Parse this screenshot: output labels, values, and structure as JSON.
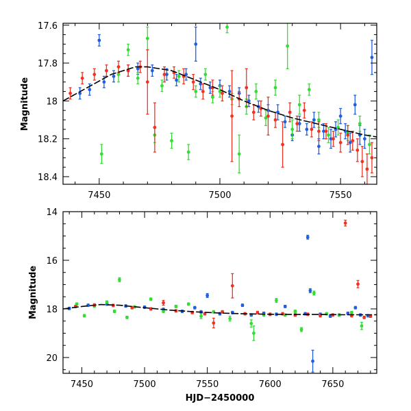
{
  "colors": {
    "blue": "#1f5fe0",
    "green": "#33dd33",
    "red": "#ee3322",
    "model": "#000000"
  },
  "chart_data": [
    {
      "type": "scatter",
      "title": "",
      "xlabel": "",
      "ylabel": "Magnitude",
      "xlim": [
        7435,
        7565
      ],
      "ylim": [
        18.44,
        17.59
      ],
      "y_inverted": true,
      "grid": false,
      "xticks": [
        7450,
        7500,
        7550
      ],
      "yticks": [
        17.6,
        17.8,
        18.0,
        18.2,
        18.4
      ],
      "xtick_labels": [
        "7450",
        "7500",
        "7550"
      ],
      "ytick_labels": [
        "17.6",
        "17.8",
        "18",
        "18.2",
        "18.4"
      ],
      "model_curve": {
        "x": [
          7435,
          7445,
          7455,
          7465,
          7470,
          7480,
          7490,
          7500,
          7510,
          7520,
          7530,
          7540,
          7550,
          7560,
          7565
        ],
        "y": [
          18.0,
          17.93,
          17.86,
          17.82,
          17.82,
          17.84,
          17.89,
          17.94,
          18.0,
          18.05,
          18.09,
          18.12,
          18.15,
          18.18,
          18.19
        ]
      },
      "series": [
        {
          "color": "blue",
          "points": [
            [
              7442,
              17.96,
              0.03
            ],
            [
              7446,
              17.94,
              0.03
            ],
            [
              7450,
              17.68,
              0.03
            ],
            [
              7452,
              17.9,
              0.03
            ],
            [
              7456,
              17.87,
              0.03
            ],
            [
              7462,
              17.84,
              0.03
            ],
            [
              7466,
              17.83,
              0.03
            ],
            [
              7472,
              17.84,
              0.03
            ],
            [
              7478,
              17.86,
              0.03
            ],
            [
              7482,
              17.89,
              0.03
            ],
            [
              7486,
              17.86,
              0.03
            ],
            [
              7490,
              17.7,
              0.09
            ],
            [
              7492,
              17.91,
              0.03
            ],
            [
              7496,
              17.93,
              0.03
            ],
            [
              7500,
              17.92,
              0.03
            ],
            [
              7504,
              17.95,
              0.03
            ],
            [
              7508,
              17.96,
              0.03
            ],
            [
              7512,
              18.0,
              0.03
            ],
            [
              7516,
              18.03,
              0.03
            ],
            [
              7520,
              18.05,
              0.03
            ],
            [
              7524,
              18.06,
              0.04
            ],
            [
              7527,
              18.11,
              0.03
            ],
            [
              7530,
              18.18,
              0.03
            ],
            [
              7533,
              18.12,
              0.04
            ],
            [
              7536,
              18.15,
              0.03
            ],
            [
              7539,
              18.1,
              0.04
            ],
            [
              7541,
              18.24,
              0.04
            ],
            [
              7543,
              18.16,
              0.04
            ],
            [
              7546,
              18.2,
              0.05
            ],
            [
              7548,
              18.15,
              0.04
            ],
            [
              7550,
              18.08,
              0.04
            ],
            [
              7552,
              18.16,
              0.04
            ],
            [
              7554,
              18.22,
              0.05
            ],
            [
              7556,
              18.02,
              0.05
            ],
            [
              7558,
              18.18,
              0.05
            ],
            [
              7560,
              18.2,
              0.05
            ],
            [
              7563,
              17.77,
              0.09
            ]
          ]
        },
        {
          "color": "green",
          "points": [
            [
              7451,
              18.28,
              0.05
            ],
            [
              7458,
              17.86,
              0.04
            ],
            [
              7462,
              17.73,
              0.03
            ],
            [
              7466,
              17.88,
              0.03
            ],
            [
              7470,
              17.67,
              0.06
            ],
            [
              7473,
              18.18,
              0.04
            ],
            [
              7476,
              17.92,
              0.03
            ],
            [
              7480,
              18.21,
              0.04
            ],
            [
              7483,
              17.87,
              0.03
            ],
            [
              7487,
              18.27,
              0.04
            ],
            [
              7490,
              17.95,
              0.03
            ],
            [
              7494,
              17.86,
              0.03
            ],
            [
              7497,
              17.98,
              0.03
            ],
            [
              7500,
              17.95,
              0.03
            ],
            [
              7503,
              17.61,
              0.03
            ],
            [
              7505,
              17.99,
              0.03
            ],
            [
              7508,
              18.28,
              0.1
            ],
            [
              7511,
              18.03,
              0.04
            ],
            [
              7515,
              17.95,
              0.04
            ],
            [
              7519,
              18.09,
              0.04
            ],
            [
              7523,
              17.93,
              0.04
            ],
            [
              7528,
              17.71,
              0.12
            ],
            [
              7530,
              18.15,
              0.05
            ],
            [
              7533,
              18.02,
              0.05
            ],
            [
              7537,
              17.94,
              0.03
            ],
            [
              7541,
              18.1,
              0.04
            ],
            [
              7545,
              18.18,
              0.04
            ],
            [
              7549,
              18.14,
              0.04
            ],
            [
              7553,
              18.17,
              0.04
            ],
            [
              7558,
              18.12,
              0.04
            ],
            [
              7562,
              18.23,
              0.05
            ]
          ]
        },
        {
          "color": "red",
          "points": [
            [
              7438,
              17.96,
              0.03
            ],
            [
              7443,
              17.88,
              0.03
            ],
            [
              7448,
              17.86,
              0.03
            ],
            [
              7453,
              17.84,
              0.03
            ],
            [
              7458,
              17.82,
              0.03
            ],
            [
              7462,
              17.84,
              0.03
            ],
            [
              7467,
              17.82,
              0.03
            ],
            [
              7470,
              17.9,
              0.17
            ],
            [
              7473,
              18.14,
              0.13
            ],
            [
              7477,
              17.86,
              0.04
            ],
            [
              7481,
              17.85,
              0.03
            ],
            [
              7485,
              17.87,
              0.04
            ],
            [
              7489,
              17.9,
              0.04
            ],
            [
              7493,
              17.95,
              0.04
            ],
            [
              7497,
              17.93,
              0.04
            ],
            [
              7501,
              17.96,
              0.04
            ],
            [
              7505,
              18.08,
              0.24
            ],
            [
              7508,
              17.99,
              0.04
            ],
            [
              7511,
              17.93,
              0.1
            ],
            [
              7514,
              18.06,
              0.04
            ],
            [
              7517,
              18.04,
              0.04
            ],
            [
              7520,
              18.08,
              0.1
            ],
            [
              7523,
              18.1,
              0.04
            ],
            [
              7526,
              18.23,
              0.12
            ],
            [
              7529,
              18.06,
              0.05
            ],
            [
              7532,
              18.12,
              0.04
            ],
            [
              7535,
              18.05,
              0.04
            ],
            [
              7538,
              18.15,
              0.04
            ],
            [
              7541,
              18.16,
              0.05
            ],
            [
              7544,
              18.16,
              0.04
            ],
            [
              7547,
              18.2,
              0.04
            ],
            [
              7550,
              18.22,
              0.05
            ],
            [
              7553,
              18.18,
              0.05
            ],
            [
              7555,
              18.21,
              0.05
            ],
            [
              7557,
              18.26,
              0.06
            ],
            [
              7559,
              18.32,
              0.08
            ],
            [
              7561,
              18.36,
              0.08
            ],
            [
              7563,
              18.3,
              0.08
            ]
          ]
        }
      ]
    },
    {
      "type": "scatter",
      "title": "",
      "xlabel": "HJD−2450000",
      "ylabel": "Magnitude",
      "xlim": [
        7435,
        7685
      ],
      "ylim": [
        20.65,
        14.0
      ],
      "y_inverted": true,
      "grid": false,
      "xticks": [
        7450,
        7500,
        7550,
        7600,
        7650
      ],
      "yticks": [
        14,
        16,
        18,
        20
      ],
      "xtick_labels": [
        "7450",
        "7500",
        "7550",
        "7600",
        "7650"
      ],
      "ytick_labels": [
        "14",
        "16",
        "18",
        "20"
      ],
      "model_curve": {
        "x": [
          7435,
          7450,
          7465,
          7480,
          7500,
          7520,
          7540,
          7560,
          7580,
          7600,
          7620,
          7640,
          7660,
          7685
        ],
        "y": [
          18.0,
          17.9,
          17.82,
          17.85,
          17.95,
          18.05,
          18.12,
          18.17,
          18.2,
          18.22,
          18.23,
          18.23,
          18.24,
          18.24
        ]
      },
      "series": [
        {
          "color": "blue",
          "points": [
            [
              7440,
              17.98,
              0.05
            ],
            [
              7455,
              17.85,
              0.05
            ],
            [
              7470,
              17.8,
              0.05
            ],
            [
              7485,
              17.88,
              0.05
            ],
            [
              7500,
              17.93,
              0.05
            ],
            [
              7515,
              18.02,
              0.05
            ],
            [
              7530,
              18.1,
              0.05
            ],
            [
              7540,
              17.95,
              0.05
            ],
            [
              7545,
              18.12,
              0.05
            ],
            [
              7550,
              17.45,
              0.08
            ],
            [
              7560,
              18.2,
              0.05
            ],
            [
              7570,
              18.15,
              0.05
            ],
            [
              7578,
              17.85,
              0.05
            ],
            [
              7585,
              18.25,
              0.05
            ],
            [
              7595,
              18.18,
              0.05
            ],
            [
              7605,
              18.22,
              0.05
            ],
            [
              7612,
              17.9,
              0.05
            ],
            [
              7620,
              18.25,
              0.05
            ],
            [
              7628,
              18.2,
              0.05
            ],
            [
              7630,
              15.05,
              0.08
            ],
            [
              7632,
              17.25,
              0.08
            ],
            [
              7634,
              20.15,
              0.45
            ],
            [
              7640,
              18.22,
              0.05
            ],
            [
              7648,
              18.3,
              0.05
            ],
            [
              7655,
              18.25,
              0.05
            ],
            [
              7662,
              18.18,
              0.05
            ],
            [
              7668,
              17.95,
              0.05
            ],
            [
              7672,
              18.25,
              0.05
            ],
            [
              7678,
              18.28,
              0.05
            ]
          ]
        },
        {
          "color": "green",
          "points": [
            [
              7446,
              17.8,
              0.05
            ],
            [
              7452,
              18.28,
              0.05
            ],
            [
              7460,
              17.88,
              0.05
            ],
            [
              7470,
              17.72,
              0.05
            ],
            [
              7476,
              18.1,
              0.05
            ],
            [
              7480,
              16.8,
              0.08
            ],
            [
              7486,
              18.35,
              0.05
            ],
            [
              7492,
              17.92,
              0.05
            ],
            [
              7505,
              17.6,
              0.05
            ],
            [
              7515,
              18.1,
              0.05
            ],
            [
              7525,
              17.9,
              0.05
            ],
            [
              7535,
              17.8,
              0.05
            ],
            [
              7545,
              18.3,
              0.1
            ],
            [
              7555,
              18.12,
              0.05
            ],
            [
              7568,
              18.4,
              0.1
            ],
            [
              7585,
              18.6,
              0.15
            ],
            [
              7587,
              19.0,
              0.3
            ],
            [
              7595,
              18.25,
              0.05
            ],
            [
              7605,
              17.65,
              0.08
            ],
            [
              7612,
              18.25,
              0.05
            ],
            [
              7620,
              18.1,
              0.05
            ],
            [
              7625,
              18.85,
              0.08
            ],
            [
              7635,
              17.35,
              0.08
            ],
            [
              7645,
              18.2,
              0.05
            ],
            [
              7655,
              18.25,
              0.05
            ],
            [
              7665,
              18.15,
              0.05
            ],
            [
              7673,
              18.7,
              0.15
            ],
            [
              7680,
              18.3,
              0.05
            ]
          ]
        },
        {
          "color": "red",
          "points": [
            [
              7445,
              17.9,
              0.05
            ],
            [
              7460,
              17.84,
              0.05
            ],
            [
              7475,
              17.86,
              0.05
            ],
            [
              7490,
              17.95,
              0.05
            ],
            [
              7505,
              18.0,
              0.05
            ],
            [
              7515,
              17.75,
              0.1
            ],
            [
              7525,
              18.08,
              0.05
            ],
            [
              7538,
              18.15,
              0.05
            ],
            [
              7548,
              18.2,
              0.05
            ],
            [
              7555,
              18.58,
              0.2
            ],
            [
              7562,
              18.12,
              0.05
            ],
            [
              7570,
              17.05,
              0.5
            ],
            [
              7580,
              18.2,
              0.05
            ],
            [
              7590,
              18.15,
              0.05
            ],
            [
              7600,
              18.22,
              0.05
            ],
            [
              7610,
              18.2,
              0.05
            ],
            [
              7620,
              18.25,
              0.05
            ],
            [
              7630,
              18.22,
              0.05
            ],
            [
              7640,
              18.28,
              0.05
            ],
            [
              7650,
              18.25,
              0.05
            ],
            [
              7660,
              14.47,
              0.12
            ],
            [
              7665,
              18.28,
              0.05
            ],
            [
              7670,
              16.98,
              0.15
            ],
            [
              7675,
              18.35,
              0.05
            ],
            [
              7680,
              18.3,
              0.05
            ]
          ]
        }
      ]
    }
  ]
}
